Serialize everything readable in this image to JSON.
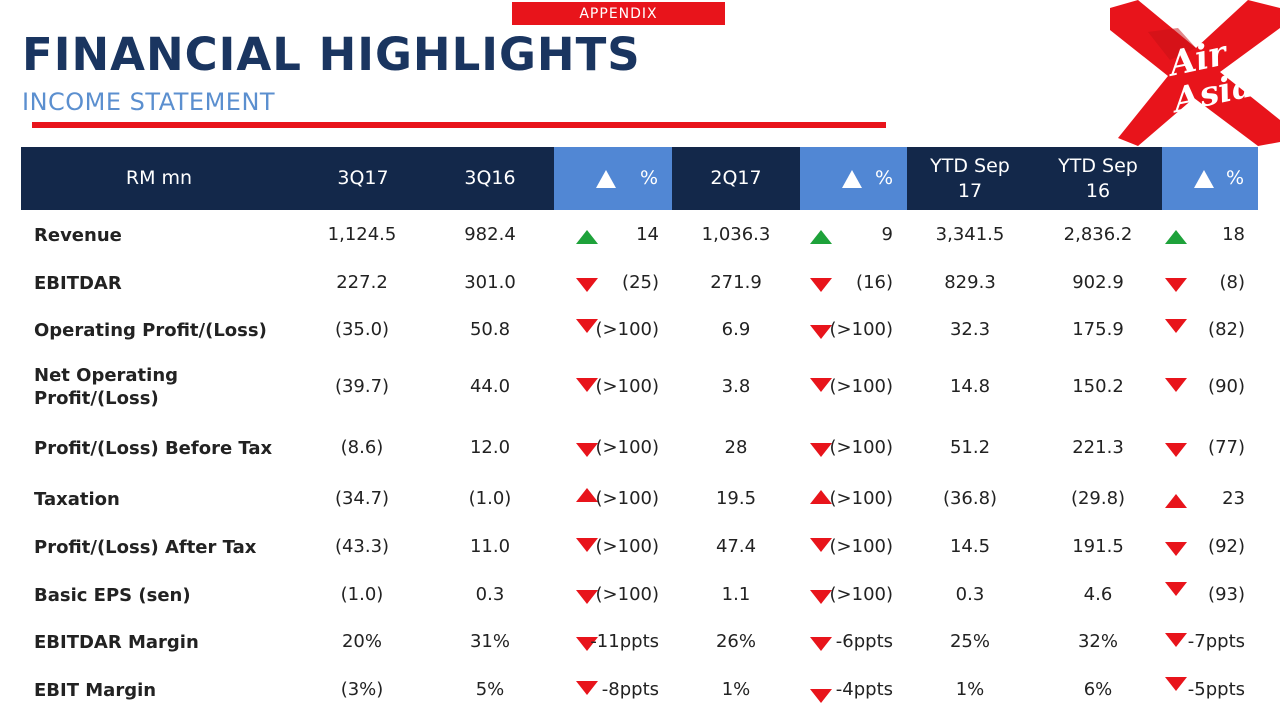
{
  "header": {
    "tag": "APPENDIX",
    "title": "FINANCIAL HIGHLIGHTS",
    "subtitle": "INCOME STATEMENT",
    "logo_text_1": "Air",
    "logo_text_2": "Asia"
  },
  "table": {
    "columns": {
      "label": "RM mn",
      "c1": "3Q17",
      "c2": "3Q16",
      "d1": "%",
      "c3": "2Q17",
      "d2": "%",
      "c4_line1": "YTD Sep",
      "c4_line2": "17",
      "c5_line1": "YTD Sep",
      "c5_line2": "16",
      "d3": "%"
    },
    "rows": [
      {
        "label": "Revenue",
        "v": [
          "1,124.5",
          "982.4",
          "14",
          "1,036.3",
          "9",
          "3,341.5",
          "2,836.2",
          "18"
        ],
        "dir": [
          "up-green",
          "up-green",
          "up-green"
        ]
      },
      {
        "label": "EBITDAR",
        "v": [
          "227.2",
          "301.0",
          "(25)",
          "271.9",
          "(16)",
          "829.3",
          "902.9",
          "(8)"
        ],
        "dir": [
          "down-red",
          "down-red",
          "down-red"
        ]
      },
      {
        "label": "Operating Profit/(Loss)",
        "v": [
          "(35.0)",
          "50.8",
          "(>100)",
          "6.9",
          "(>100)",
          "32.3",
          "175.9",
          "(82)"
        ],
        "dir": [
          "down-red",
          "down-red",
          "down-red"
        ]
      },
      {
        "label_1": "Net Operating",
        "label_2": "Profit/(Loss)",
        "v": [
          "(39.7)",
          "44.0",
          "(>100)",
          "3.8",
          "(>100)",
          "14.8",
          "150.2",
          "(90)"
        ],
        "dir": [
          "down-red",
          "down-red",
          "down-red"
        ]
      },
      {
        "label": "Profit/(Loss) Before Tax",
        "v": [
          "(8.6)",
          "12.0",
          "(>100)",
          "28",
          "(>100)",
          "51.2",
          "221.3",
          "(77)"
        ],
        "dir": [
          "down-red",
          "down-red",
          "down-red"
        ]
      },
      {
        "label": "Taxation",
        "v": [
          "(34.7)",
          "(1.0)",
          "(>100)",
          "19.5",
          "(>100)",
          "(36.8)",
          "(29.8)",
          "23"
        ],
        "dir": [
          "up-red",
          "up-red",
          "up-red"
        ]
      },
      {
        "label": "Profit/(Loss) After Tax",
        "v": [
          "(43.3)",
          "11.0",
          "(>100)",
          "47.4",
          "(>100)",
          "14.5",
          "191.5",
          "(92)"
        ],
        "dir": [
          "down-red",
          "down-red",
          "down-red"
        ]
      },
      {
        "label": "Basic EPS (sen)",
        "v": [
          "(1.0)",
          "0.3",
          "(>100)",
          "1.1",
          "(>100)",
          "0.3",
          "4.6",
          "(93)"
        ],
        "dir": [
          "down-red",
          "down-red",
          "down-red"
        ]
      },
      {
        "label": "EBITDAR Margin",
        "v": [
          "20%",
          "31%",
          "-11ppts",
          "26%",
          "-6ppts",
          "25%",
          "32%",
          "-7ppts"
        ],
        "dir": [
          "down-red",
          "down-red",
          "down-red"
        ]
      },
      {
        "label": "EBIT Margin",
        "v": [
          "(3%)",
          "5%",
          "-8ppts",
          "1%",
          "-4ppts",
          "1%",
          "6%",
          "-5ppts"
        ],
        "dir": [
          "down-red",
          "down-red",
          "down-red"
        ]
      }
    ]
  },
  "colors": {
    "brand_red": "#e8141b",
    "title_navy": "#1a3560",
    "subtitle_blue": "#5b8fcf",
    "header_navy": "#13284a",
    "delta_blue": "#5187d4",
    "up_green": "#1ea23a"
  }
}
